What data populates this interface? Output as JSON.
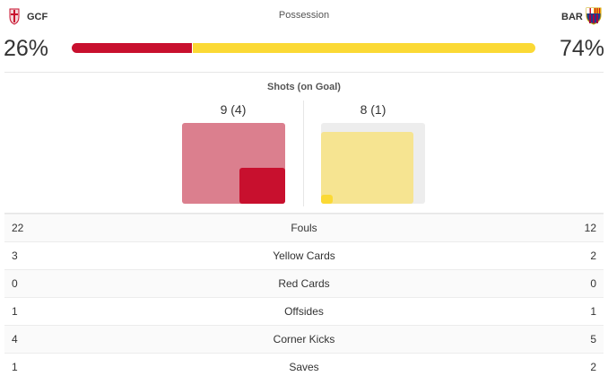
{
  "home": {
    "abbr": "GCF",
    "possession": "26%",
    "possession_value": 0.26,
    "shots": "9 (4)",
    "shots_total": 9,
    "shots_on_goal": 4,
    "color": "#c8102e",
    "color_light": "#db7f8e"
  },
  "away": {
    "abbr": "BAR",
    "possession": "74%",
    "possession_value": 0.74,
    "shots": "8 (1)",
    "shots_total": 8,
    "shots_on_goal": 1,
    "color": "#fbd935",
    "color_light": "#f6e491"
  },
  "possession_title": "Possession",
  "shots_title": "Shots (on Goal)",
  "stats": [
    {
      "home": "22",
      "label": "Fouls",
      "away": "12"
    },
    {
      "home": "3",
      "label": "Yellow Cards",
      "away": "2"
    },
    {
      "home": "0",
      "label": "Red Cards",
      "away": "0"
    },
    {
      "home": "1",
      "label": "Offsides",
      "away": "1"
    },
    {
      "home": "4",
      "label": "Corner Kicks",
      "away": "5"
    },
    {
      "home": "1",
      "label": "Saves",
      "away": "2"
    }
  ]
}
